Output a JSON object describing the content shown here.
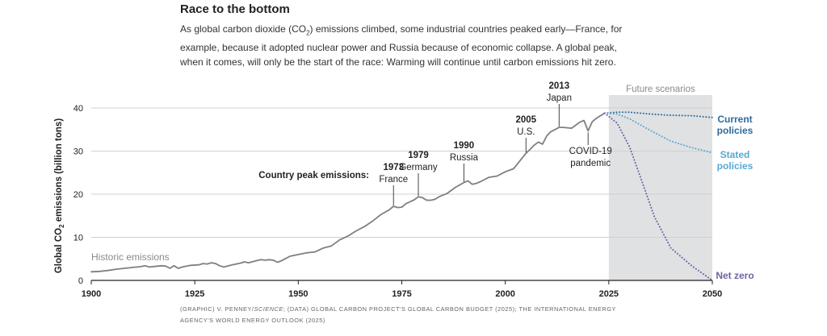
{
  "title": "Race to the bottom",
  "subtitle_parts": {
    "before": "As global carbon dioxide (CO",
    "sub": "2",
    "after": ") emissions climbed, some industrial countries peaked early—France, for example, because it adopted nuclear power and Russia because of economic collapse. A global peak, when it comes, will only be the start of the race: Warming will continue until carbon emissions hit zero."
  },
  "source_parts": {
    "prefix": "(GRAPHIC) V. PENNEY/",
    "italic": "SCIENCE",
    "suffix": "; (DATA) GLOBAL CARBON PROJECT'S GLOBAL CARBON BUDGET (2025); THE INTERNATIONAL ENERGY AGENCY'S WORLD ENERGY OUTLOOK (2025)"
  },
  "colors": {
    "historic": "#7f7f7f",
    "current_policies": "#2e6a9c",
    "stated_policies": "#5aa7d2",
    "net_zero": "#6e63a8",
    "scenario_band": "#e0e1e3",
    "grid": "#d0d0d0"
  },
  "chart_data": {
    "type": "line",
    "ylabel_parts": {
      "before": "Global CO",
      "sub": "2",
      "after": " emissions (billion tons)"
    },
    "xlim": [
      1900,
      2050
    ],
    "ylim": [
      0,
      40
    ],
    "xticks": [
      1900,
      1925,
      1950,
      1975,
      2000,
      2025,
      2050
    ],
    "yticks": [
      0,
      10,
      20,
      30,
      40
    ],
    "grid": "horizontal",
    "band": {
      "label": "Future scenarios",
      "from": 2025,
      "to": 2050
    },
    "historic_label": "Historic emissions",
    "peaks_heading": "Country peak emissions:",
    "series": [
      {
        "key": "historic",
        "style": "solid",
        "x": [
          1900,
          1902,
          1904,
          1906,
          1908,
          1910,
          1912,
          1913,
          1914,
          1916,
          1917,
          1918,
          1919,
          1920,
          1921,
          1922,
          1924,
          1926,
          1927,
          1928,
          1929,
          1930,
          1931,
          1932,
          1934,
          1936,
          1937,
          1938,
          1940,
          1941,
          1942,
          1943,
          1944,
          1945,
          1946,
          1947,
          1948,
          1950,
          1952,
          1954,
          1956,
          1958,
          1960,
          1962,
          1964,
          1966,
          1968,
          1970,
          1972,
          1973,
          1974,
          1975,
          1976,
          1978,
          1979,
          1980,
          1981,
          1982,
          1983,
          1984,
          1986,
          1988,
          1990,
          1991,
          1992,
          1993,
          1994,
          1996,
          1998,
          2000,
          2002,
          2004,
          2005,
          2006,
          2007,
          2008,
          2009,
          2010,
          2011,
          2012,
          2013,
          2014,
          2016,
          2018,
          2019,
          2020,
          2021,
          2022,
          2024
        ],
        "values": [
          2.0,
          2.1,
          2.3,
          2.6,
          2.8,
          3.0,
          3.2,
          3.4,
          3.1,
          3.3,
          3.4,
          3.3,
          2.8,
          3.4,
          2.8,
          3.1,
          3.5,
          3.6,
          3.9,
          3.8,
          4.1,
          3.9,
          3.4,
          3.1,
          3.6,
          4.0,
          4.3,
          4.1,
          4.6,
          4.8,
          4.7,
          4.8,
          4.7,
          4.2,
          4.6,
          5.1,
          5.6,
          6.0,
          6.4,
          6.6,
          7.5,
          8.0,
          9.4,
          10.3,
          11.5,
          12.5,
          13.8,
          15.3,
          16.4,
          17.2,
          16.9,
          17.0,
          17.8,
          18.7,
          19.4,
          19.2,
          18.6,
          18.6,
          18.8,
          19.4,
          20.2,
          21.6,
          22.7,
          23.1,
          22.3,
          22.5,
          22.9,
          23.9,
          24.2,
          25.2,
          25.9,
          28.3,
          29.5,
          30.4,
          31.4,
          32.1,
          31.6,
          33.5,
          34.5,
          35.0,
          35.5,
          35.5,
          35.3,
          36.7,
          37.1,
          34.7,
          36.8,
          37.6,
          38.8
        ]
      },
      {
        "key": "current_policies",
        "style": "dotted",
        "name_lines": [
          "Current",
          "policies"
        ],
        "x": [
          2024,
          2027,
          2030,
          2035,
          2040,
          2045,
          2050
        ],
        "values": [
          38.8,
          39.0,
          39.0,
          38.6,
          38.3,
          38.2,
          37.8
        ]
      },
      {
        "key": "stated_policies",
        "style": "dotted",
        "name_lines": [
          "Stated",
          "policies"
        ],
        "x": [
          2024,
          2027,
          2030,
          2035,
          2040,
          2045,
          2050
        ],
        "values": [
          38.8,
          38.6,
          37.5,
          34.8,
          32.3,
          30.8,
          29.6
        ]
      },
      {
        "key": "net_zero",
        "style": "dotted",
        "name_lines": [
          "Net zero"
        ],
        "x": [
          2024,
          2027,
          2030,
          2033,
          2036,
          2040,
          2045,
          2050
        ],
        "values": [
          38.8,
          36.5,
          31.0,
          23.0,
          14.8,
          7.5,
          3.4,
          0.0
        ]
      }
    ],
    "annotations": [
      {
        "x": 1973,
        "y": 17.2,
        "year": "1973",
        "label": "France"
      },
      {
        "x": 1979,
        "y": 19.4,
        "year": "1979",
        "label": "Germany"
      },
      {
        "x": 1990,
        "y": 22.7,
        "year": "1990",
        "label": "Russia"
      },
      {
        "x": 2005,
        "y": 29.5,
        "year": "2005",
        "label": "U.S."
      },
      {
        "x": 2013,
        "y": 35.5,
        "year": "2013",
        "label": "Japan"
      },
      {
        "x": 2020,
        "y": 34.7,
        "year": "",
        "label": "COVID-19 pandemic",
        "label_lines": [
          "COVID-19",
          "pandemic"
        ]
      }
    ]
  }
}
